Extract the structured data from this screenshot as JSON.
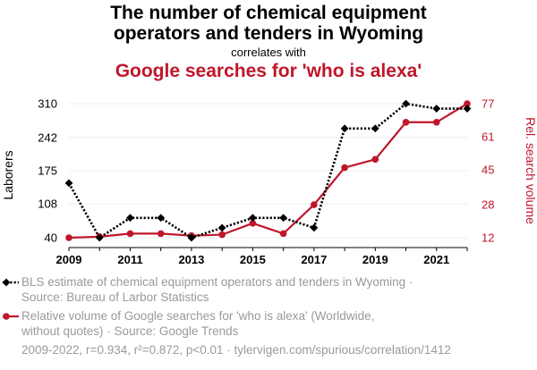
{
  "header": {
    "title_line1": "The number of chemical equipment",
    "title_line2": "operators and tenders in Wyoming",
    "subtitle": "correlates with",
    "title_line3": "Google searches for 'who is alexa'"
  },
  "legend": {
    "series1_line1": "BLS estimate of chemical equipment operators and tenders in Wyoming ·",
    "series1_line2": "Source: Bureau of Larbor Statistics",
    "series2_line1": "Relative volume of Google searches for 'who is alexa' (Worldwide,",
    "series2_line2": "without quotes) · Source: Google Trends"
  },
  "footer": "2009-2022, r=0.934, r²=0.872, p<0.01 · tylervigen.com/spurious/correlation/1412",
  "colors": {
    "series1": "#000000",
    "series2": "#c0162a",
    "grid": "#eeeeee"
  },
  "chart_data": {
    "type": "line",
    "x": [
      2009,
      2010,
      2011,
      2012,
      2013,
      2014,
      2015,
      2016,
      2017,
      2018,
      2019,
      2020,
      2021,
      2022
    ],
    "x_ticks": [
      "2009",
      "2011",
      "2013",
      "2015",
      "2017",
      "2019",
      "2021"
    ],
    "ylabel_left": "Laborers",
    "ylabel_right": "Rel. search volume",
    "y_left_ticks": [
      "40",
      "108",
      "175",
      "242",
      "310"
    ],
    "y_right_ticks": [
      "12",
      "28",
      "45",
      "61",
      "77"
    ],
    "y_left_range": [
      40,
      310
    ],
    "y_right_range": [
      12,
      77
    ],
    "series": [
      {
        "name": "BLS estimate of chemical equipment operators and tenders in Wyoming",
        "axis": "left",
        "marker": "diamond",
        "dash": "dotted",
        "values": [
          150,
          40,
          80,
          80,
          40,
          60,
          80,
          80,
          60,
          260,
          260,
          310,
          300,
          300
        ]
      },
      {
        "name": "Relative volume of Google searches for 'who is alexa' (Worldwide, without quotes)",
        "axis": "right",
        "marker": "circle",
        "dash": "solid",
        "values": [
          12,
          12.5,
          14,
          14,
          13,
          13.5,
          19,
          14,
          28,
          46,
          50,
          68,
          68,
          77
        ]
      }
    ]
  }
}
